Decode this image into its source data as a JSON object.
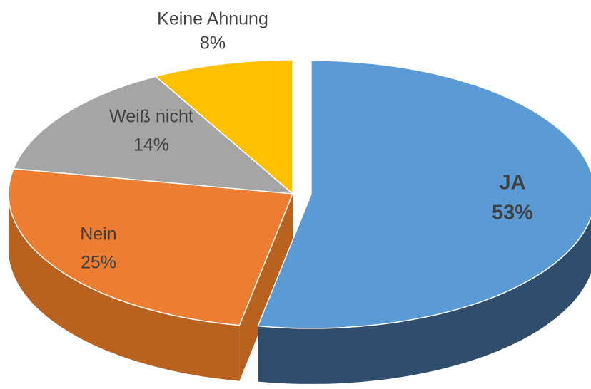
{
  "chart_data": {
    "type": "pie",
    "three_d": true,
    "categories": [
      "JA",
      "Nein",
      "Weiß nicht",
      "Keine Ahnung"
    ],
    "values": [
      53,
      25,
      14,
      8
    ],
    "value_labels": [
      "53%",
      "25%",
      "14%",
      "8%"
    ],
    "colors": [
      "#5b9bd5",
      "#ed7d31",
      "#a5a5a5",
      "#ffc000"
    ],
    "side_colors": [
      "#2f4e6e",
      "#b9611f",
      "#7f7f7f",
      "#c49400"
    ],
    "exploded": [
      0
    ]
  }
}
